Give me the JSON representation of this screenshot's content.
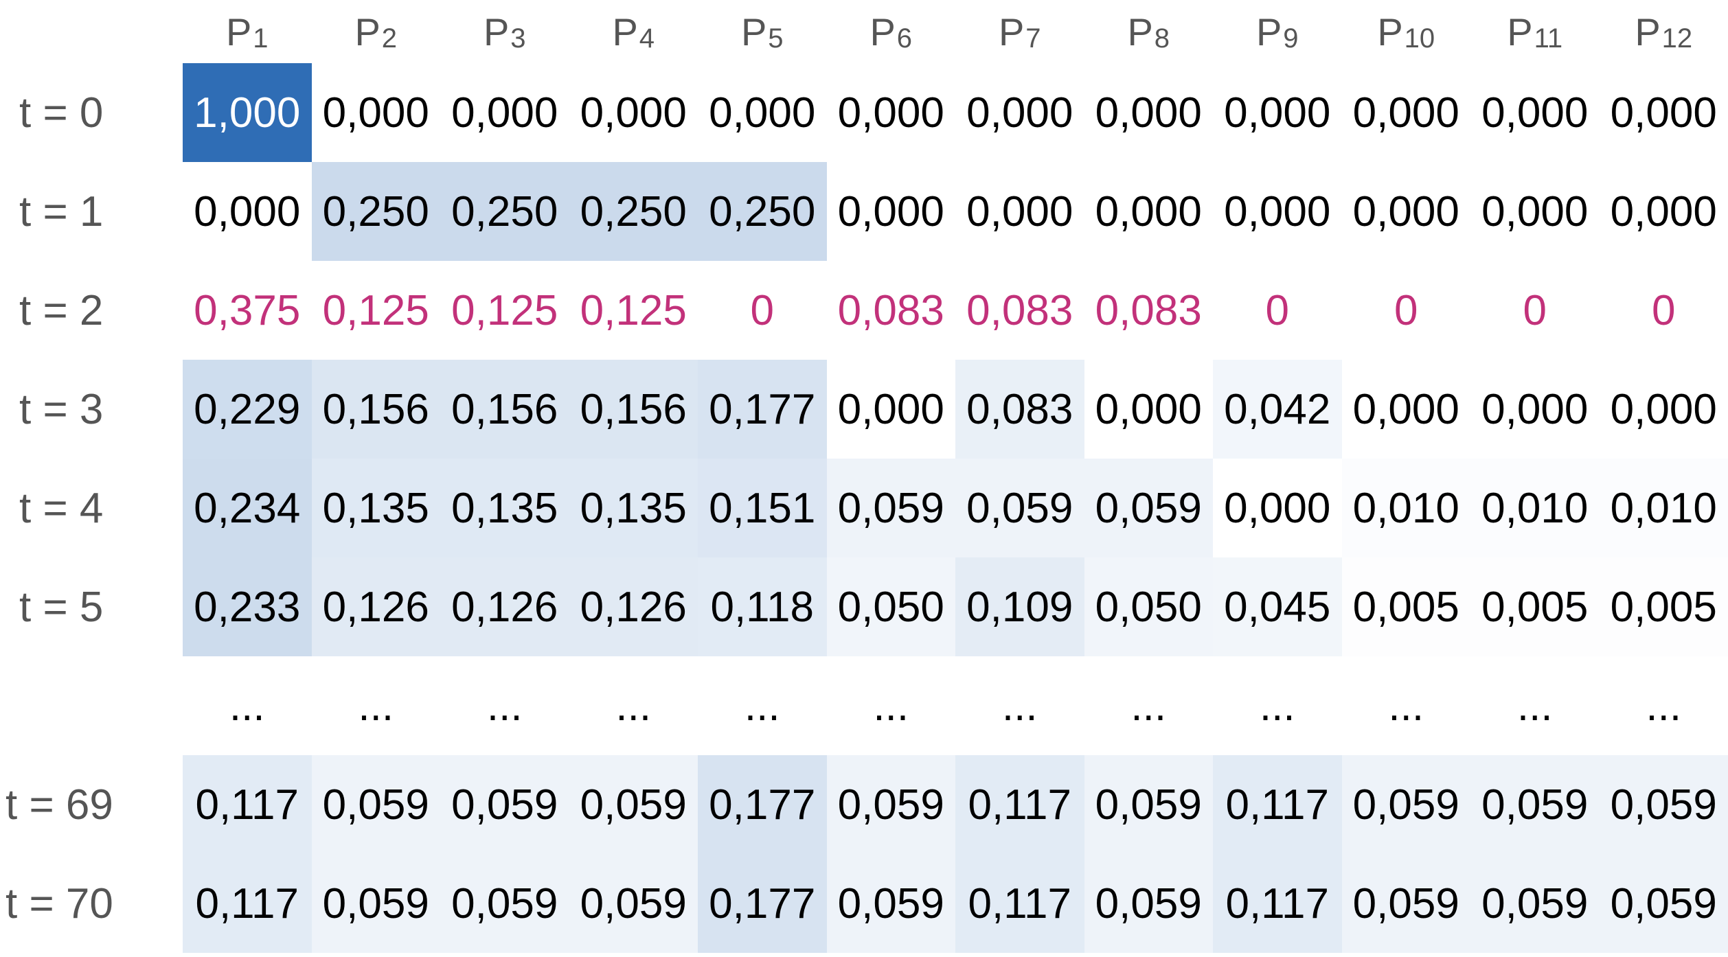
{
  "chart_data": {
    "type": "heatmap",
    "columns": [
      {
        "base": "P",
        "sub": "1"
      },
      {
        "base": "P",
        "sub": "2"
      },
      {
        "base": "P",
        "sub": "3"
      },
      {
        "base": "P",
        "sub": "4"
      },
      {
        "base": "P",
        "sub": "5"
      },
      {
        "base": "P",
        "sub": "6"
      },
      {
        "base": "P",
        "sub": "7"
      },
      {
        "base": "P",
        "sub": "8"
      },
      {
        "base": "P",
        "sub": "9"
      },
      {
        "base": "P",
        "sub": "10"
      },
      {
        "base": "P",
        "sub": "11"
      },
      {
        "base": "P",
        "sub": "12"
      }
    ],
    "rows": [
      {
        "label": "t = 0",
        "values": [
          "1,000",
          "0,000",
          "0,000",
          "0,000",
          "0,000",
          "0,000",
          "0,000",
          "0,000",
          "0,000",
          "0,000",
          "0,000",
          "0,000"
        ]
      },
      {
        "label": "t = 1",
        "values": [
          "0,000",
          "0,250",
          "0,250",
          "0,250",
          "0,250",
          "0,000",
          "0,000",
          "0,000",
          "0,000",
          "0,000",
          "0,000",
          "0,000"
        ]
      },
      {
        "label": "t = 2",
        "highlight": true,
        "values": [
          "0,375",
          "0,125",
          "0,125",
          "0,125",
          "0",
          "0,083",
          "0,083",
          "0,083",
          "0",
          "0",
          "0",
          "0"
        ]
      },
      {
        "label": "t = 3",
        "values": [
          "0,229",
          "0,156",
          "0,156",
          "0,156",
          "0,177",
          "0,000",
          "0,083",
          "0,000",
          "0,042",
          "0,000",
          "0,000",
          "0,000"
        ]
      },
      {
        "label": "t = 4",
        "values": [
          "0,234",
          "0,135",
          "0,135",
          "0,135",
          "0,151",
          "0,059",
          "0,059",
          "0,059",
          "0,000",
          "0,010",
          "0,010",
          "0,010"
        ]
      },
      {
        "label": "t = 5",
        "values": [
          "0,233",
          "0,126",
          "0,126",
          "0,126",
          "0,118",
          "0,050",
          "0,109",
          "0,050",
          "0,045",
          "0,005",
          "0,005",
          "0,005"
        ]
      },
      {
        "label": "",
        "ellipsis": true,
        "values": [
          "...",
          "...",
          "...",
          "...",
          "...",
          "...",
          "...",
          "...",
          "...",
          "...",
          "...",
          "..."
        ]
      },
      {
        "label": "t = 69",
        "values": [
          "0,117",
          "0,059",
          "0,059",
          "0,059",
          "0,177",
          "0,059",
          "0,117",
          "0,059",
          "0,117",
          "0,059",
          "0,059",
          "0,059"
        ]
      },
      {
        "label": "t = 70",
        "values": [
          "0,117",
          "0,059",
          "0,059",
          "0,059",
          "0,177",
          "0,059",
          "0,117",
          "0,059",
          "0,117",
          "0,059",
          "0,059",
          "0,059"
        ]
      }
    ],
    "colors": {
      "max_fill": "#2f6db5",
      "low_fill": "#ffffff",
      "text": "#000000",
      "text_on_dark": "#ffffff",
      "highlight_text": "#c2317a",
      "label_text": "#555555"
    }
  }
}
